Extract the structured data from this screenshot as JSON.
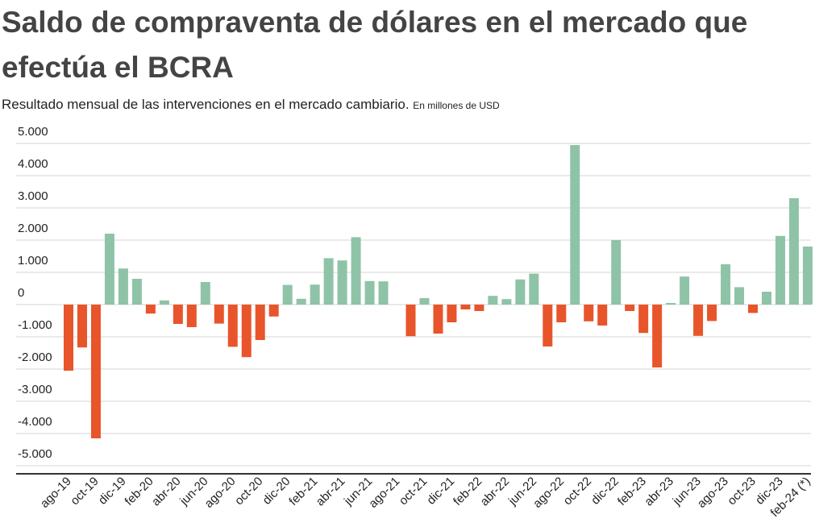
{
  "chart_data": {
    "type": "bar",
    "title": "Saldo de compraventa de dólares en el mercado que efectúa el BCRA",
    "subtitle": "Resultado  mensual de las intervenciones en el mercado cambiario.",
    "unit_note": "En millones de USD",
    "categories": [
      "ago-19",
      null,
      "oct-19",
      null,
      "dic-19",
      null,
      "feb-20",
      null,
      "abr-20",
      null,
      "jun-20",
      null,
      "ago-20",
      null,
      "oct-20",
      null,
      "dic-20",
      null,
      "feb-21",
      null,
      "abr-21",
      null,
      "jun-21",
      null,
      "ago-21",
      null,
      "oct-21",
      null,
      "dic-21",
      null,
      "feb-22",
      null,
      "abr-22",
      null,
      "jun-22",
      null,
      "ago-22",
      null,
      "oct-22",
      null,
      "dic-22",
      null,
      "feb-23",
      null,
      "abr-23",
      null,
      "jun-23",
      null,
      "ago-23",
      null,
      "oct-23",
      null,
      "dic-23",
      null,
      "feb-24 (*)"
    ],
    "values": [
      -2050,
      -1330,
      -4150,
      2200,
      1120,
      800,
      -280,
      130,
      -600,
      -700,
      700,
      -590,
      -1310,
      -1630,
      -1100,
      -370,
      610,
      180,
      620,
      1440,
      1370,
      2090,
      730,
      720,
      0,
      -980,
      200,
      -900,
      -550,
      -150,
      -200,
      270,
      170,
      780,
      960,
      -1300,
      -550,
      4950,
      -520,
      -650,
      2000,
      -200,
      -880,
      -1950,
      50,
      870,
      -970,
      -510,
      1250,
      540,
      -260,
      400,
      2130,
      3300,
      1800
    ],
    "positive_color": "#8fc3a7",
    "negative_color": "#e8552b",
    "ylim": [
      -5250,
      5250
    ],
    "yticks": [
      {
        "value": 5000,
        "label": "5.000"
      },
      {
        "value": 4000,
        "label": "4.000"
      },
      {
        "value": 3000,
        "label": "3.000"
      },
      {
        "value": 2000,
        "label": "2.000"
      },
      {
        "value": 1000,
        "label": "1.000"
      },
      0,
      {
        "value": -1000,
        "label": "-1.000"
      },
      {
        "value": -2000,
        "label": "-2.000"
      },
      {
        "value": -3000,
        "label": "-3.000"
      },
      {
        "value": -4000,
        "label": "-4.000"
      },
      {
        "value": -5000,
        "label": "-5.000"
      }
    ],
    "grid": true
  }
}
